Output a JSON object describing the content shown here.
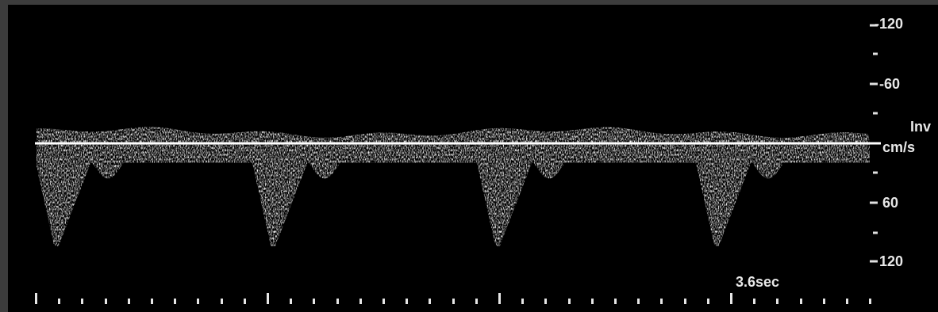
{
  "scale": {
    "unit": "cm/s",
    "mode_label": "Inv",
    "tick_labels_above": [
      "-120",
      "-60"
    ],
    "tick_labels_below": [
      "60",
      "120"
    ]
  },
  "time": {
    "duration_label": "3.6sec"
  },
  "colors": {
    "background": "#000000",
    "frame": "#3c3c3c",
    "baseline": "#ffffff",
    "signal": "#d8d8d8"
  }
}
